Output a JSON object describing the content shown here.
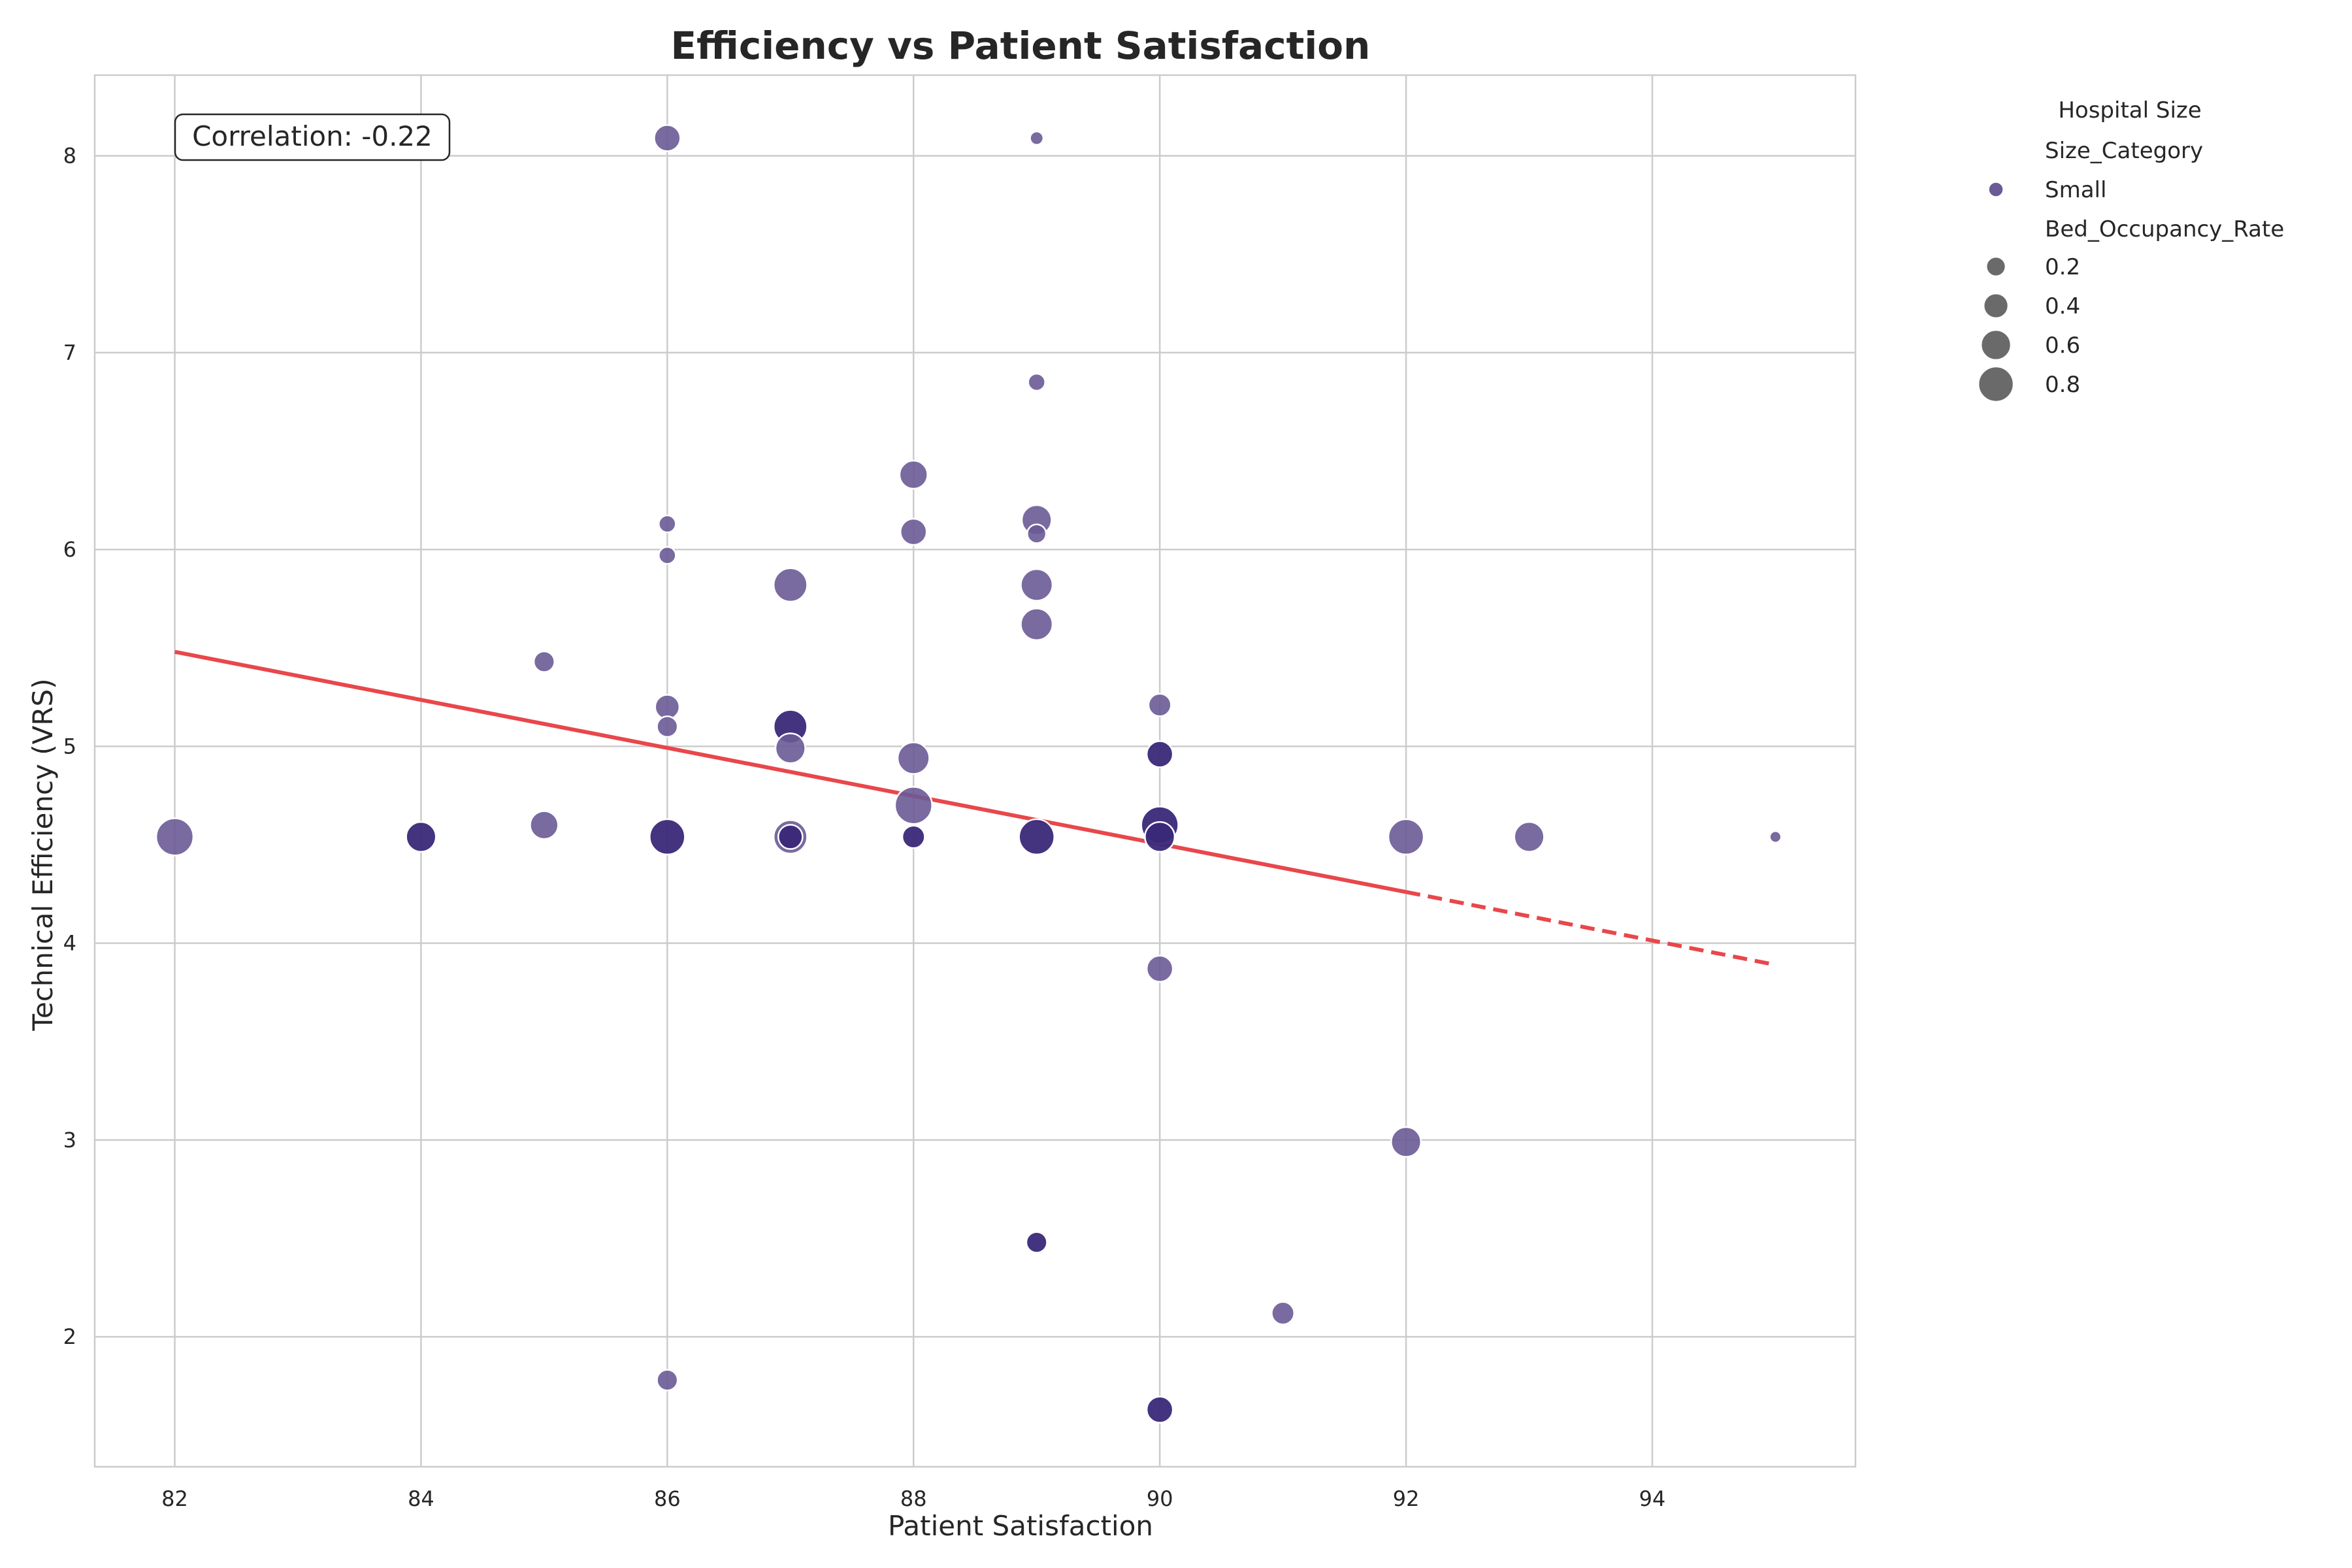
{
  "chart_data": {
    "type": "scatter",
    "title": "Efficiency vs Patient Satisfaction",
    "xlabel": "Patient Satisfaction",
    "ylabel": "Technical Efficiency (VRS)",
    "xlim": [
      81.35,
      95.65
    ],
    "ylim": [
      1.34,
      8.41
    ],
    "xticks": [
      82,
      84,
      86,
      88,
      90,
      92,
      94
    ],
    "yticks": [
      2,
      3,
      4,
      5,
      6,
      7,
      8
    ],
    "grid": true,
    "annotation": "Correlation: -0.22",
    "legend": {
      "position": "outside-right",
      "title": "Hospital Size",
      "hue_title": "Size_Category",
      "hue_entries": [
        {
          "label": "Small",
          "color": "#6a5a96"
        }
      ],
      "size_title": "Bed_Occupancy_Rate",
      "size_entries": [
        {
          "label": "0.2",
          "value": 0.2
        },
        {
          "label": "0.4",
          "value": 0.4
        },
        {
          "label": "0.6",
          "value": 0.6
        },
        {
          "label": "0.8",
          "value": 0.8
        }
      ]
    },
    "colors": {
      "light": "#6a5a96",
      "dark": "#3a2878",
      "trend": "#e8474b",
      "grid": "#cccccc",
      "axes": "#cccccc"
    },
    "trendline": {
      "solid": [
        [
          82,
          5.48
        ],
        [
          92,
          4.26
        ]
      ],
      "dashed": [
        [
          92,
          4.26
        ],
        [
          95,
          3.89
        ]
      ]
    },
    "points": [
      {
        "x": 82,
        "y": 4.54,
        "size": 0.8,
        "shade": "light"
      },
      {
        "x": 84,
        "y": 4.54,
        "size": 0.6,
        "shade": "dark"
      },
      {
        "x": 85,
        "y": 4.6,
        "size": 0.55,
        "shade": "light"
      },
      {
        "x": 85,
        "y": 5.43,
        "size": 0.35,
        "shade": "light"
      },
      {
        "x": 86,
        "y": 8.09,
        "size": 0.5,
        "shade": "light"
      },
      {
        "x": 86,
        "y": 6.13,
        "size": 0.25,
        "shade": "light"
      },
      {
        "x": 86,
        "y": 5.97,
        "size": 0.25,
        "shade": "light"
      },
      {
        "x": 86,
        "y": 5.2,
        "size": 0.45,
        "shade": "light"
      },
      {
        "x": 86,
        "y": 5.1,
        "size": 0.35,
        "shade": "light"
      },
      {
        "x": 86,
        "y": 4.54,
        "size": 0.75,
        "shade": "dark"
      },
      {
        "x": 86,
        "y": 1.78,
        "size": 0.35,
        "shade": "light"
      },
      {
        "x": 87,
        "y": 5.82,
        "size": 0.7,
        "shade": "light"
      },
      {
        "x": 87,
        "y": 5.1,
        "size": 0.7,
        "shade": "dark"
      },
      {
        "x": 87,
        "y": 4.99,
        "size": 0.6,
        "shade": "light"
      },
      {
        "x": 87,
        "y": 4.54,
        "size": 0.7,
        "shade": "light"
      },
      {
        "x": 87,
        "y": 4.54,
        "size": 0.45,
        "shade": "dark"
      },
      {
        "x": 88,
        "y": 6.38,
        "size": 0.55,
        "shade": "light"
      },
      {
        "x": 88,
        "y": 6.09,
        "size": 0.5,
        "shade": "light"
      },
      {
        "x": 88,
        "y": 4.94,
        "size": 0.65,
        "shade": "light"
      },
      {
        "x": 88,
        "y": 4.7,
        "size": 0.8,
        "shade": "light"
      },
      {
        "x": 88,
        "y": 4.54,
        "size": 0.4,
        "shade": "dark"
      },
      {
        "x": 89,
        "y": 8.09,
        "size": 0.15,
        "shade": "light"
      },
      {
        "x": 89,
        "y": 6.85,
        "size": 0.25,
        "shade": "light"
      },
      {
        "x": 89,
        "y": 6.15,
        "size": 0.6,
        "shade": "light"
      },
      {
        "x": 89,
        "y": 6.08,
        "size": 0.3,
        "shade": "light"
      },
      {
        "x": 89,
        "y": 5.82,
        "size": 0.65,
        "shade": "light"
      },
      {
        "x": 89,
        "y": 5.62,
        "size": 0.65,
        "shade": "light"
      },
      {
        "x": 89,
        "y": 4.54,
        "size": 0.75,
        "shade": "dark"
      },
      {
        "x": 89,
        "y": 2.48,
        "size": 0.35,
        "shade": "dark"
      },
      {
        "x": 90,
        "y": 5.21,
        "size": 0.4,
        "shade": "light"
      },
      {
        "x": 90,
        "y": 4.96,
        "size": 0.5,
        "shade": "dark"
      },
      {
        "x": 90,
        "y": 4.6,
        "size": 0.8,
        "shade": "dark"
      },
      {
        "x": 90,
        "y": 4.54,
        "size": 0.6,
        "shade": "dark"
      },
      {
        "x": 90,
        "y": 3.87,
        "size": 0.5,
        "shade": "light"
      },
      {
        "x": 90,
        "y": 1.63,
        "size": 0.5,
        "shade": "dark"
      },
      {
        "x": 91,
        "y": 2.12,
        "size": 0.4,
        "shade": "light"
      },
      {
        "x": 92,
        "y": 4.54,
        "size": 0.75,
        "shade": "light"
      },
      {
        "x": 92,
        "y": 2.99,
        "size": 0.6,
        "shade": "light"
      },
      {
        "x": 93,
        "y": 4.54,
        "size": 0.6,
        "shade": "light"
      },
      {
        "x": 95,
        "y": 4.54,
        "size": 0.1,
        "shade": "light"
      }
    ]
  }
}
